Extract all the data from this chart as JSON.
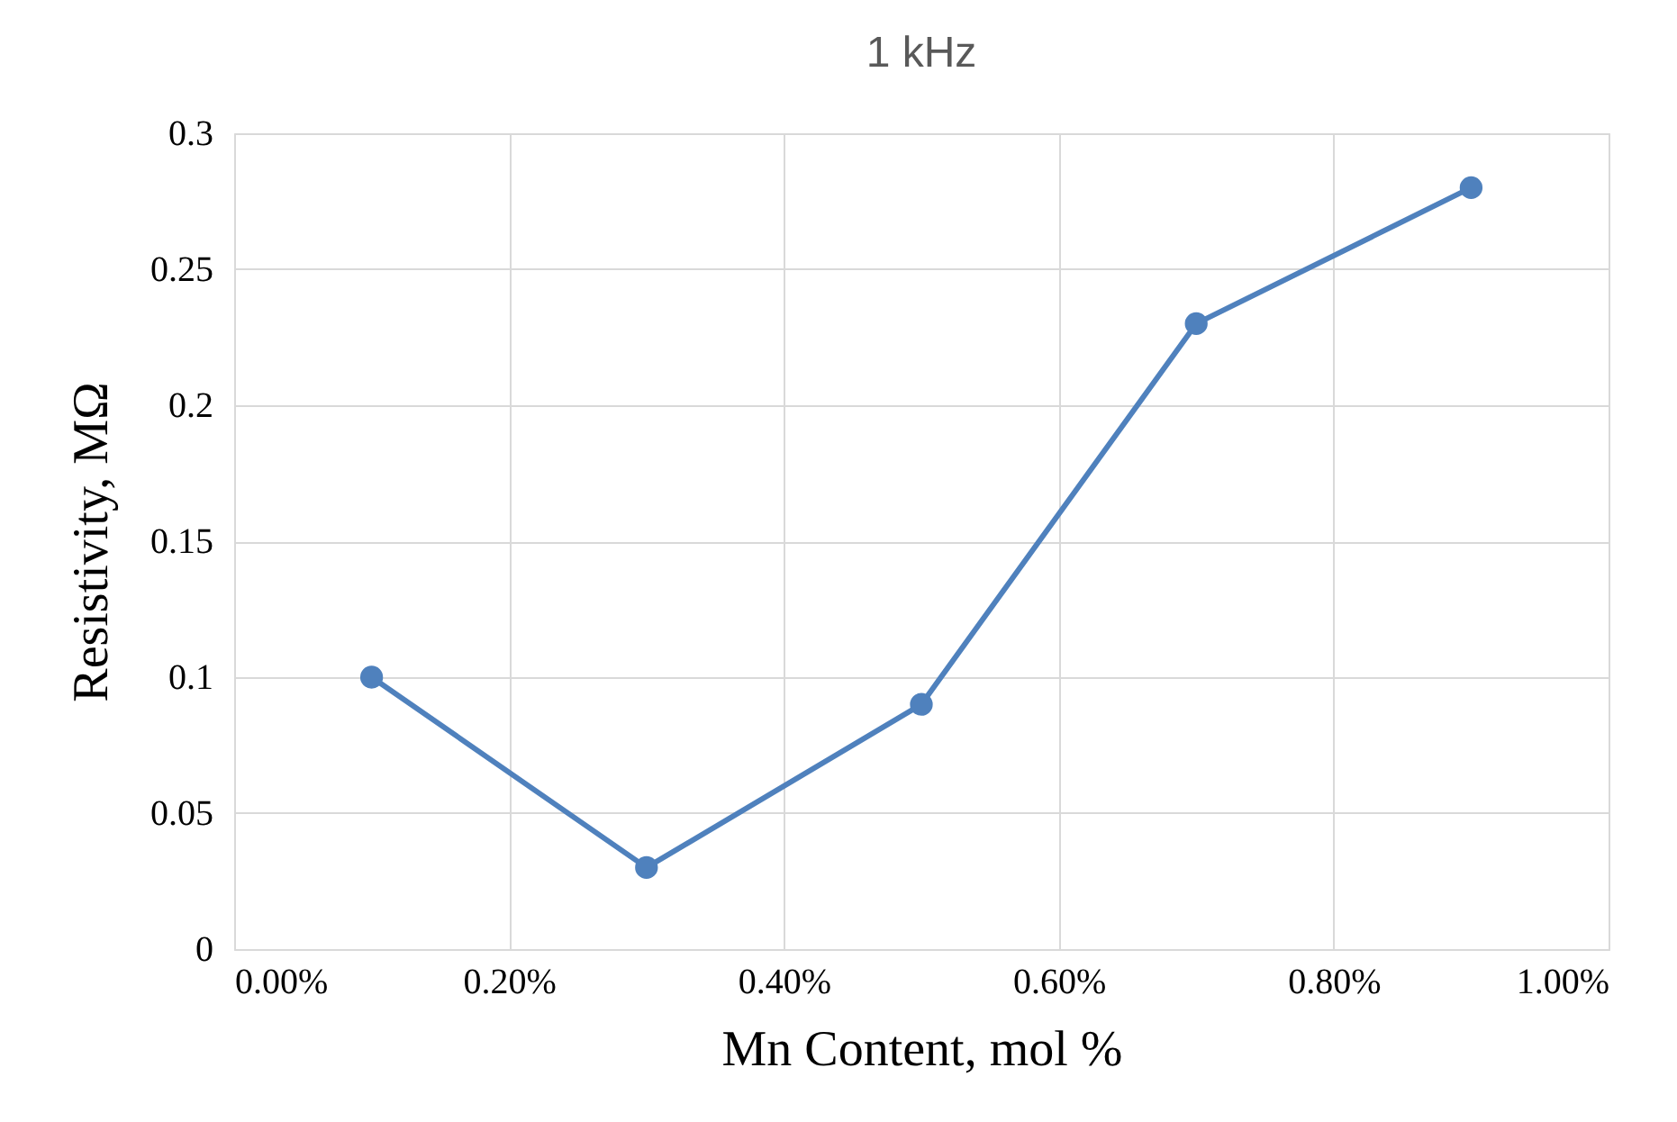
{
  "chart_data": {
    "type": "line",
    "title": "1 kHz",
    "xlabel": "Mn Content, mol %",
    "ylabel": "Resistivity, MΩ",
    "x": [
      0.1,
      0.3,
      0.5,
      0.7,
      0.9
    ],
    "series": [
      {
        "color": "#4f81bd",
        "values": [
          0.1,
          0.03,
          0.09,
          0.23,
          0.28
        ]
      }
    ],
    "xlim": [
      0,
      1
    ],
    "xticks": [
      {
        "value": 0,
        "label": "0.00%"
      },
      {
        "value": 0.2,
        "label": "0.20%"
      },
      {
        "value": 0.4,
        "label": "0.40%"
      },
      {
        "value": 0.6,
        "label": "0.60%"
      },
      {
        "value": 0.8,
        "label": "0.80%"
      },
      {
        "value": 1,
        "label": "1.00%"
      }
    ],
    "ylim": [
      0,
      0.3
    ],
    "yticks": [
      0,
      0.05,
      0.1,
      0.15,
      0.2,
      0.25,
      0.3
    ],
    "grid": true,
    "marker": "circle",
    "line_style": "solid"
  }
}
